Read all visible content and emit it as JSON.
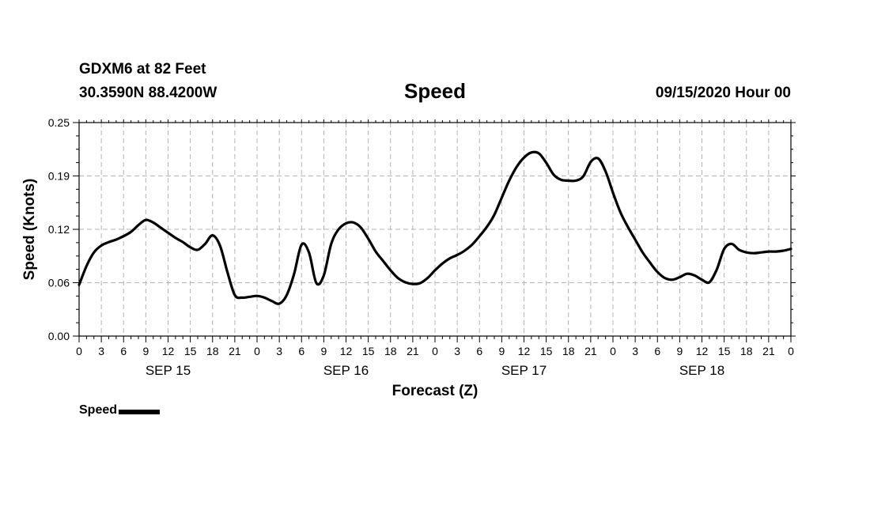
{
  "header": {
    "station": "GDXM6 at 82 Feet",
    "coords": "30.3590N 88.4200W",
    "title": "Speed",
    "datetime": "09/15/2020 Hour 00"
  },
  "legend": {
    "label": "Speed"
  },
  "chart_data": {
    "type": "line",
    "title": "Speed",
    "xlabel": "Forecast (Z)",
    "ylabel": "Speed (Knots)",
    "ylim": [
      0.0,
      0.25
    ],
    "yticks": [
      "0.00",
      "0.06",
      "0.12",
      "0.19",
      "0.25"
    ],
    "ytick_values": [
      0.0,
      0.0625,
      0.125,
      0.1875,
      0.25
    ],
    "xlim": [
      0,
      96
    ],
    "xtick_labels": [
      "0",
      "3",
      "6",
      "9",
      "12",
      "15",
      "18",
      "21",
      "0",
      "3",
      "6",
      "9",
      "12",
      "15",
      "18",
      "21",
      "0",
      "3",
      "6",
      "9",
      "12",
      "15",
      "18",
      "21",
      "0",
      "3",
      "6",
      "9",
      "12",
      "15",
      "18",
      "21",
      "0"
    ],
    "day_labels": [
      {
        "label": "SEP 15",
        "hour": 12
      },
      {
        "label": "SEP 16",
        "hour": 36
      },
      {
        "label": "SEP 17",
        "hour": 60
      },
      {
        "label": "SEP 18",
        "hour": 84
      }
    ],
    "grid": true,
    "series": [
      {
        "name": "Speed",
        "x": [
          0,
          1,
          2,
          3,
          4,
          5,
          6,
          7,
          8,
          9,
          10,
          11,
          12,
          13,
          14,
          15,
          16,
          17,
          18,
          19,
          20,
          21,
          22,
          23,
          24,
          25,
          26,
          27,
          28,
          29,
          30,
          31,
          32,
          33,
          34,
          35,
          36,
          37,
          38,
          39,
          40,
          41,
          42,
          43,
          44,
          45,
          46,
          47,
          48,
          49,
          50,
          51,
          52,
          53,
          54,
          55,
          56,
          57,
          58,
          59,
          60,
          61,
          62,
          63,
          64,
          65,
          66,
          67,
          68,
          69,
          70,
          71,
          72,
          73,
          74,
          75,
          76,
          77,
          78,
          79,
          80,
          81,
          82,
          83,
          84,
          85,
          86,
          87,
          88,
          89,
          90,
          91,
          92,
          93,
          94,
          95,
          96
        ],
        "values": [
          0.06,
          0.082,
          0.098,
          0.106,
          0.11,
          0.113,
          0.117,
          0.122,
          0.13,
          0.136,
          0.133,
          0.127,
          0.121,
          0.115,
          0.11,
          0.104,
          0.101,
          0.108,
          0.118,
          0.106,
          0.075,
          0.048,
          0.045,
          0.046,
          0.047,
          0.045,
          0.041,
          0.038,
          0.048,
          0.073,
          0.107,
          0.098,
          0.062,
          0.071,
          0.108,
          0.125,
          0.132,
          0.133,
          0.127,
          0.114,
          0.099,
          0.088,
          0.077,
          0.068,
          0.063,
          0.061,
          0.062,
          0.068,
          0.077,
          0.085,
          0.091,
          0.095,
          0.1,
          0.107,
          0.117,
          0.128,
          0.142,
          0.162,
          0.182,
          0.198,
          0.209,
          0.215,
          0.214,
          0.203,
          0.189,
          0.183,
          0.182,
          0.182,
          0.187,
          0.204,
          0.208,
          0.193,
          0.168,
          0.145,
          0.128,
          0.113,
          0.098,
          0.086,
          0.075,
          0.068,
          0.066,
          0.069,
          0.073,
          0.071,
          0.066,
          0.063,
          0.078,
          0.102,
          0.108,
          0.101,
          0.098,
          0.097,
          0.098,
          0.099,
          0.099,
          0.1,
          0.102
        ]
      }
    ]
  }
}
